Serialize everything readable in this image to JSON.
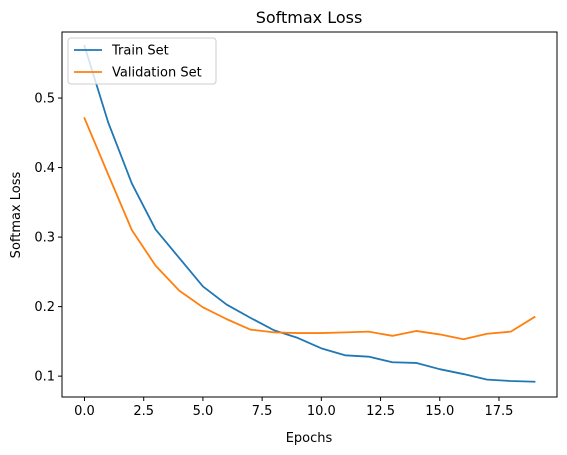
{
  "chart_data": {
    "type": "line",
    "title": "Softmax Loss",
    "xlabel": "Epochs",
    "ylabel": "Softmax Loss",
    "xlim": [
      -0.95,
      19.95
    ],
    "ylim": [
      0.07,
      0.595
    ],
    "xticks": [
      0.0,
      2.5,
      5.0,
      7.5,
      10.0,
      12.5,
      15.0,
      17.5
    ],
    "xtick_labels": [
      "0.0",
      "2.5",
      "5.0",
      "7.5",
      "10.0",
      "12.5",
      "15.0",
      "17.5"
    ],
    "yticks": [
      0.1,
      0.2,
      0.3,
      0.4,
      0.5
    ],
    "ytick_labels": [
      "0.1",
      "0.2",
      "0.3",
      "0.4",
      "0.5"
    ],
    "grid": false,
    "legend_position": "top-left",
    "x": [
      0,
      1,
      2,
      3,
      4,
      5,
      6,
      7,
      8,
      9,
      10,
      11,
      12,
      13,
      14,
      15,
      16,
      17,
      18,
      19
    ],
    "series": [
      {
        "name": "Train Set",
        "color": "#1f77b4",
        "values": [
          0.575,
          0.465,
          0.377,
          0.311,
          0.27,
          0.229,
          0.203,
          0.184,
          0.166,
          0.155,
          0.14,
          0.13,
          0.128,
          0.12,
          0.119,
          0.11,
          0.103,
          0.095,
          0.093,
          0.092
        ]
      },
      {
        "name": "Validation Set",
        "color": "#ff7f0e",
        "values": [
          0.471,
          0.39,
          0.31,
          0.259,
          0.223,
          0.199,
          0.182,
          0.167,
          0.163,
          0.162,
          0.162,
          0.163,
          0.164,
          0.158,
          0.165,
          0.16,
          0.153,
          0.161,
          0.164,
          0.185
        ]
      }
    ]
  }
}
